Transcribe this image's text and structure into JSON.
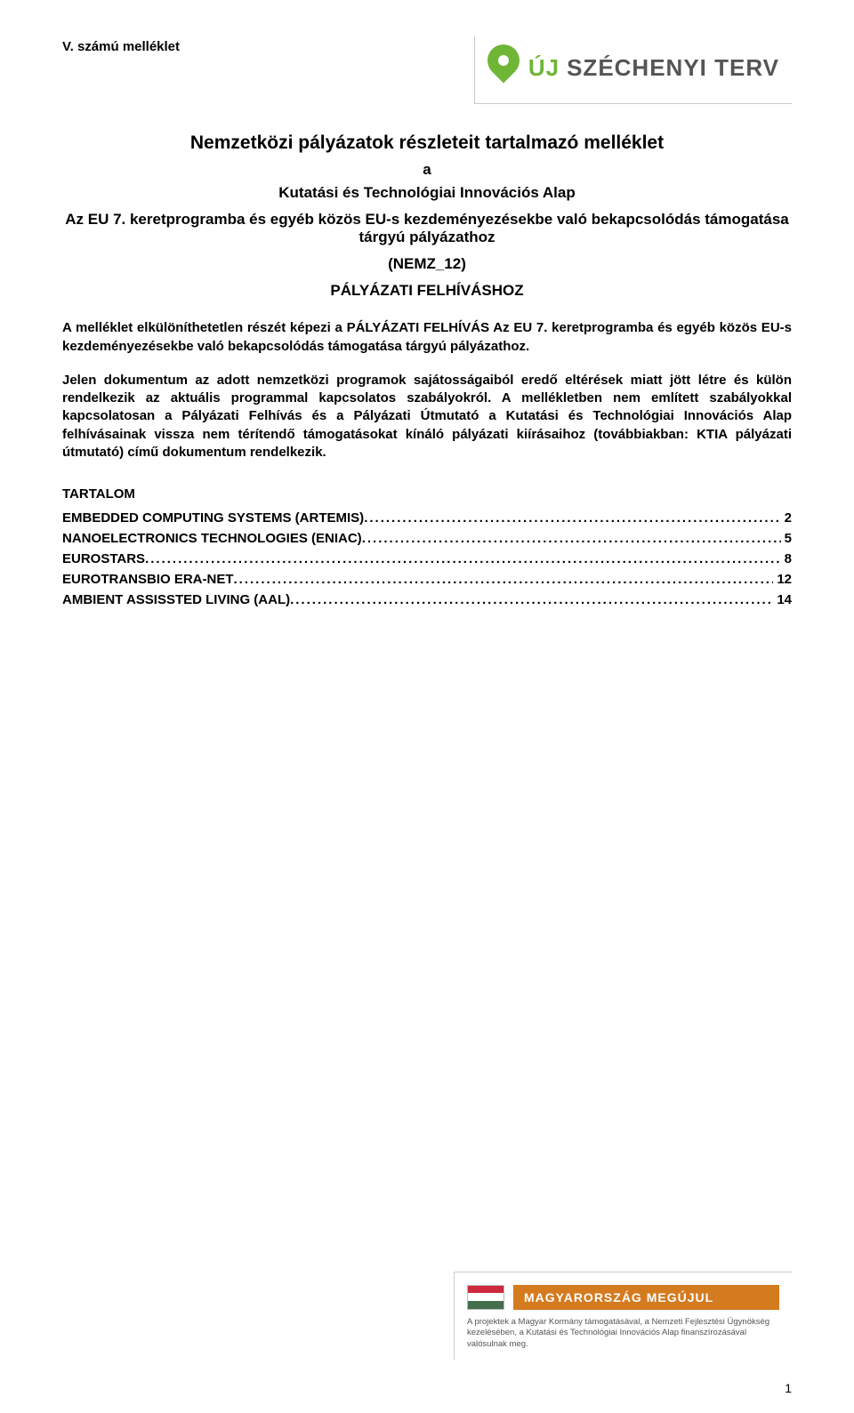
{
  "header": {
    "annex_label": "V. számú melléklet",
    "logo": {
      "uj": "ÚJ",
      "name": "SZÉCHENYI TERV"
    }
  },
  "title": {
    "main": "Nemzetközi pályázatok részleteit tartalmazó melléklet",
    "a": "a",
    "sub1": "Kutatási és Technológiai Innovációs Alap",
    "sub2": "Az EU 7. keretprogramba és egyéb közös EU-s kezdeményezésekbe való bekapcsolódás támogatása tárgyú pályázathoz",
    "code": "(NEMZ_12)",
    "doc": "PÁLYÁZATI FELHÍVÁSHOZ"
  },
  "paragraphs": {
    "p1": "A melléklet elkülöníthetetlen részét képezi a PÁLYÁZATI FELHÍVÁS Az EU 7. keretprogramba és egyéb közös EU-s kezdeményezésekbe való bekapcsolódás támogatása tárgyú pályázathoz.",
    "p2": "Jelen dokumentum az adott nemzetközi programok sajátosságaiból eredő eltérések miatt jött létre és külön rendelkezik az aktuális programmal kapcsolatos szabályokról. A mellékletben nem említett szabályokkal kapcsolatosan a Pályázati Felhívás és a Pályázati Útmutató a Kutatási és Technológiai Innovációs Alap felhívásainak vissza nem térítendő támogatásokat kínáló pályázati kiírásaihoz (továbbiakban: KTIA pályázati útmutató) című dokumentum rendelkezik."
  },
  "toc": {
    "heading": "TARTALOM",
    "items": [
      {
        "label": "EMBEDDED COMPUTING SYSTEMS (ARTEMIS)",
        "page": "2"
      },
      {
        "label": "NANOELECTRONICS TECHNOLOGIES (ENIAC)",
        "page": "5"
      },
      {
        "label": "EUROSTARS",
        "page": "8"
      },
      {
        "label": "EUROTRANSBIO ERA-NET",
        "page": "12"
      },
      {
        "label": "AMBIENT ASSISSTED LIVING (AAL)",
        "page": "14"
      }
    ]
  },
  "footer": {
    "badge_title": "MAGYARORSZÁG MEGÚJUL",
    "caption": "A projektek a Magyar Kormány támogatásával, a Nemzeti Fejlesztési Ügynökség kezelésében, a Kutatási és Technológiai Innovációs Alap finanszírozásával valósulnak meg."
  },
  "page_number": "1"
}
